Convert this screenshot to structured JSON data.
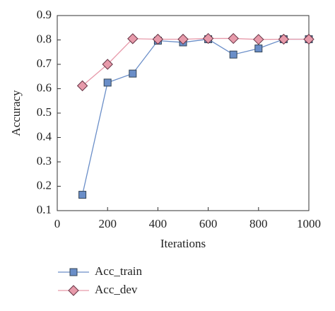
{
  "chart_data": {
    "type": "line",
    "x_label": "Iterations",
    "y_label": "Accuracy",
    "x": [
      100,
      200,
      300,
      400,
      500,
      600,
      700,
      800,
      900,
      1000
    ],
    "series": [
      {
        "name": "Acc_train",
        "color": "#6a8ec8",
        "marker": "square",
        "values": [
          0.165,
          0.625,
          0.662,
          0.797,
          0.79,
          0.803,
          0.74,
          0.765,
          0.803,
          0.803
        ]
      },
      {
        "name": "Acc_dev",
        "color": "#e79aaa",
        "marker": "diamond",
        "values": [
          0.612,
          0.7,
          0.805,
          0.803,
          0.803,
          0.806,
          0.806,
          0.802,
          0.803,
          0.803
        ]
      }
    ],
    "xlim": [
      0,
      1000
    ],
    "xticks": [
      0,
      200,
      400,
      600,
      800,
      1000
    ],
    "ylim": [
      0.1,
      0.9
    ],
    "yticks": [
      0.1,
      0.2,
      0.3,
      0.4,
      0.5,
      0.6,
      0.7,
      0.8,
      0.9
    ],
    "legend": "bottom-left",
    "grid": false
  }
}
